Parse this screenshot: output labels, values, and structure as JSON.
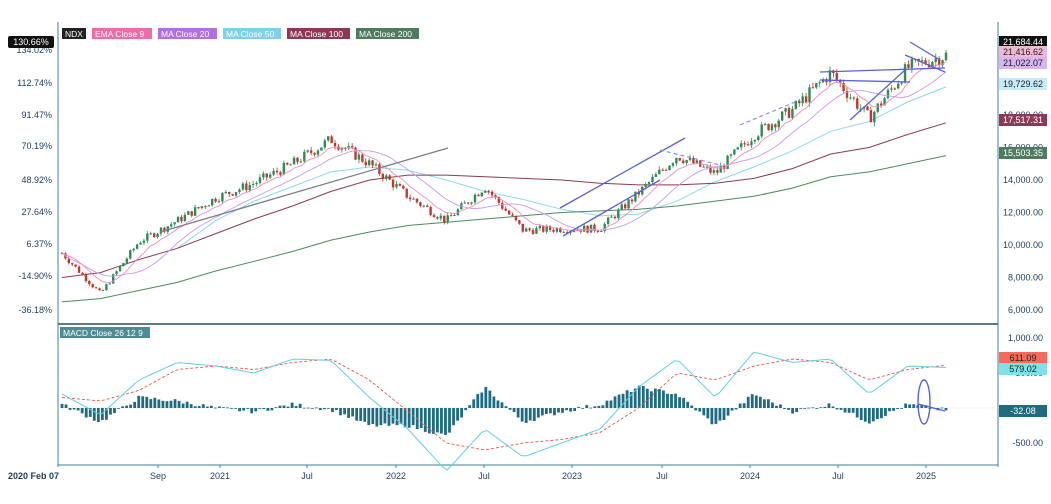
{
  "legend": [
    {
      "label": "NDX",
      "color": "#222222"
    },
    {
      "label": "EMA Close 9",
      "color": "#f06aa8"
    },
    {
      "label": "MA Close 20",
      "color": "#b070e0"
    },
    {
      "label": "MA Close 50",
      "color": "#7fd0ea"
    },
    {
      "label": "MA Close 100",
      "color": "#8b3a55"
    },
    {
      "label": "MA Close 200",
      "color": "#4e7a5e"
    }
  ],
  "macd_label": "MACD Close 26 12 9",
  "left_axis": {
    "top_badge": "130.66%",
    "labels": [
      "134.02%",
      "112.74%",
      "91.47%",
      "70.19%",
      "48.92%",
      "27.64%",
      "6.37%",
      "-14.90%",
      "-36.18%"
    ]
  },
  "right_badges": [
    {
      "text": "21,684.44",
      "bg": "#111111",
      "fg": "#ffffff"
    },
    {
      "text": "21,416.62",
      "bg": "#f3b8d6",
      "fg": "#222222"
    },
    {
      "text": "21,022.07",
      "bg": "#d9b3f2",
      "fg": "#222222"
    },
    {
      "text": "19,729.62",
      "bg": "#c6ecf7",
      "fg": "#222222"
    },
    {
      "text": "17,517.31",
      "bg": "#8b3a55",
      "fg": "#ffffff"
    },
    {
      "text": "15,503.35",
      "bg": "#4e7a5e",
      "fg": "#ffffff"
    }
  ],
  "macd_badges": [
    {
      "text": "611.09",
      "bg": "#f26b5b",
      "fg": "#222222"
    },
    {
      "text": "579.02",
      "bg": "#7fe0ea",
      "fg": "#222222"
    },
    {
      "text": "-32.08",
      "bg": "#1f6b80",
      "fg": "#ffffff"
    }
  ],
  "x_labels": [
    "2020 Feb 07",
    "Sep",
    "2021",
    "Jul",
    "2022",
    "Jul",
    "2023",
    "Jul",
    "2024",
    "Jul",
    "2025"
  ],
  "chart_data": [
    {
      "type": "line",
      "title": "NDX",
      "y_axis": {
        "ticks": [
          6000,
          8000,
          10000,
          12000,
          14000,
          16000,
          18000,
          20000
        ],
        "tick_labels": [
          "6,000.00",
          "8,000.00",
          "10,000.00",
          "12,000.00",
          "14,000.00",
          "16,000.00",
          "18,000.00",
          "20,000.00"
        ]
      },
      "x": [
        "2020-02",
        "2020-03",
        "2020-06",
        "2020-09",
        "2021-01",
        "2021-04",
        "2021-07",
        "2021-11",
        "2022-01",
        "2022-04",
        "2022-06",
        "2022-08",
        "2022-10",
        "2022-12",
        "2023-01",
        "2023-04",
        "2023-07",
        "2023-10",
        "2024-01",
        "2024-04",
        "2024-07",
        "2024-08",
        "2024-11",
        "2025-02"
      ],
      "series": [
        {
          "name": "NDX",
          "values": [
            9500,
            7000,
            10200,
            11500,
            12900,
            13800,
            15000,
            16500,
            15000,
            13000,
            11500,
            13600,
            10900,
            11000,
            11000,
            13200,
            15500,
            14400,
            16800,
            18300,
            20600,
            17800,
            20900,
            21684
          ]
        },
        {
          "name": "MA Close 50",
          "values": [
            null,
            null,
            null,
            9800,
            11500,
            12700,
            13600,
            14500,
            14800,
            14600,
            14000,
            13300,
            12800,
            12200,
            11800,
            11900,
            12700,
            13900,
            14800,
            15800,
            17000,
            17600,
            18800,
            19730
          ]
        },
        {
          "name": "MA Close 100",
          "values": [
            8000,
            8300,
            9100,
            9800,
            10700,
            11600,
            12400,
            13300,
            14000,
            14300,
            14300,
            14200,
            14100,
            14000,
            13800,
            13700,
            13700,
            13800,
            14100,
            14700,
            15600,
            16000,
            16800,
            17517
          ]
        },
        {
          "name": "MA Close 200",
          "values": [
            6500,
            6700,
            7200,
            7700,
            8400,
            9000,
            9600,
            10300,
            10800,
            11200,
            11400,
            11600,
            11800,
            12000,
            12100,
            12200,
            12400,
            12700,
            13000,
            13500,
            14200,
            14500,
            15000,
            15503
          ]
        }
      ]
    },
    {
      "type": "bar",
      "title": "MACD Close 26 12 9",
      "y_axis": {
        "ticks": [
          1000,
          500,
          -500
        ],
        "tick_labels": [
          "1,000.00",
          "500.00",
          "-500.00"
        ]
      },
      "x": [
        "2020-02",
        "2020-03",
        "2020-06",
        "2020-09",
        "2021-01",
        "2021-04",
        "2021-07",
        "2021-11",
        "2022-01",
        "2022-04",
        "2022-06",
        "2022-08",
        "2022-10",
        "2022-12",
        "2023-01",
        "2023-04",
        "2023-07",
        "2023-10",
        "2024-01",
        "2024-04",
        "2024-07",
        "2024-08",
        "2024-11",
        "2025-02"
      ],
      "series": [
        {
          "name": "MACD",
          "values": [
            200,
            -100,
            400,
            650,
            600,
            500,
            700,
            680,
            150,
            -300,
            -900,
            -300,
            -700,
            -500,
            -300,
            300,
            700,
            150,
            800,
            650,
            700,
            200,
            600,
            579
          ]
        },
        {
          "name": "Signal",
          "values": [
            150,
            100,
            250,
            550,
            600,
            550,
            650,
            700,
            400,
            -50,
            -500,
            -600,
            -500,
            -450,
            -350,
            0,
            500,
            400,
            600,
            700,
            650,
            400,
            550,
            611
          ]
        },
        {
          "name": "Histogram",
          "values": [
            50,
            -200,
            150,
            100,
            0,
            -50,
            50,
            -20,
            -250,
            -250,
            -400,
            300,
            -200,
            -50,
            50,
            300,
            200,
            -250,
            200,
            -50,
            50,
            -200,
            50,
            -32
          ]
        }
      ]
    }
  ]
}
